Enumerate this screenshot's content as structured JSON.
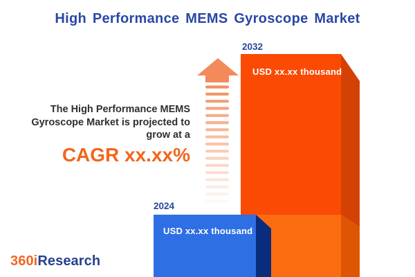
{
  "title": "High Performance MEMS Gyroscope Market",
  "annotation": {
    "line1": "The High Performance MEMS",
    "line2": "Gyroscope Market is projected to",
    "line3": "grow at a",
    "cagr": "CAGR xx.xx%"
  },
  "bars": [
    {
      "year": "2024",
      "value_label": "USD xx.xx thousand"
    },
    {
      "year": "2032",
      "value_label": "USD xx.xx thousand"
    }
  ],
  "logo": {
    "prefix": "360i",
    "suffix": "Research"
  },
  "icons": {
    "growth_arrow": "striped-up-arrow-icon"
  },
  "colors": {
    "title_navy": "#2947A5",
    "year_navy": "#29469E",
    "text_dark": "#2E2E33",
    "accent_orange": "#F2661C",
    "logo_orange": "#F26522",
    "logo_navy": "#25418F",
    "orange_face": "#FA4A03",
    "orange_face_light": "#FB6C11",
    "orange_side": "#D44104",
    "orange_side_light": "#DE5504",
    "blue_face": "#2E6FE3",
    "blue_side": "#0A2C7C",
    "arrow_salmon": "#F28A5A"
  },
  "chart_data": {
    "type": "bar",
    "categories": [
      "2024",
      "2032"
    ],
    "values": [
      "xx.xx",
      "xx.xx"
    ],
    "unit": "USD thousand",
    "value_labels": [
      "USD xx.xx thousand",
      "USD xx.xx thousand"
    ],
    "title": "High Performance MEMS Gyroscope Market",
    "annotation": "The High Performance MEMS Gyroscope Market is projected to grow at a CAGR xx.xx%",
    "legend": "none",
    "grid": false,
    "bar_colors": {
      "2024": "#2E6FE3",
      "2032": "#FA4A03"
    }
  }
}
